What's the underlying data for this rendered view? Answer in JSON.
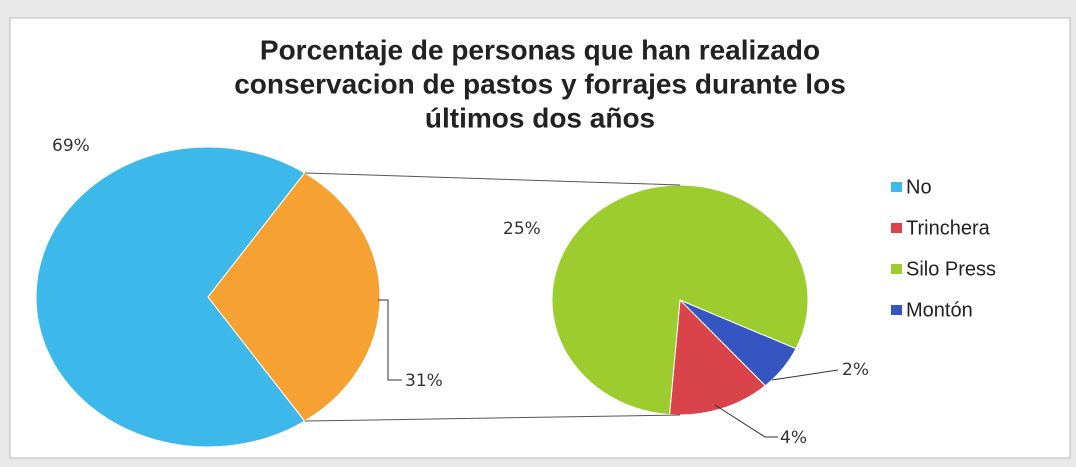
{
  "chart_data": {
    "type": "pie-of-pie",
    "title": [
      "Porcentaje de personas que han realizado",
      "conservacion de pastos y forrajes durante los",
      "últimos dos años"
    ],
    "categories": [
      "No",
      "Trinchera",
      "Silo Press",
      "Montón"
    ],
    "values": [
      69,
      4,
      25,
      2
    ],
    "value_labels": [
      "69%",
      "4%",
      "25%",
      "2%"
    ],
    "colors": [
      "#3cb8ea",
      "#d9434a",
      "#9ccc2e",
      "#3555c0"
    ],
    "other_value": 31,
    "other_value_label": "31%",
    "other_color": "#f6a233",
    "legend": "right"
  }
}
